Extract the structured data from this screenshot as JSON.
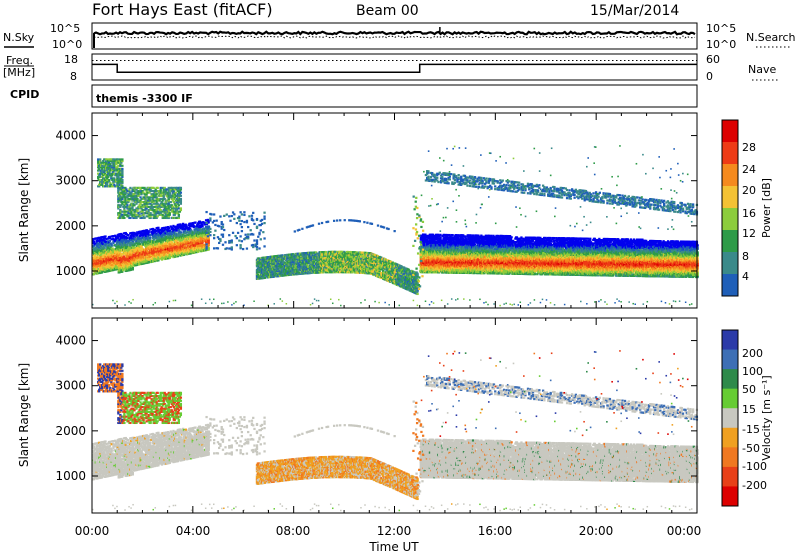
{
  "header": {
    "title": "Fort Hays East (fitACF)",
    "beam": "Beam 00",
    "date": "15/Mar/2014"
  },
  "summary_panels": {
    "nsky": {
      "left_label": "N.Sky",
      "right_label": "N.Search",
      "left_ticks": [
        "10^5",
        "10^0"
      ],
      "right_ticks": [
        "10^5",
        "10^0"
      ]
    },
    "freq": {
      "left_label_1": "Freq.",
      "left_label_2": "[MHz]",
      "left_ticks": [
        "18",
        "8"
      ],
      "right_ticks": [
        "60",
        "0"
      ],
      "right_label": "Nave"
    },
    "cpid": {
      "label": "CPID",
      "program": "themis -3300 IF"
    }
  },
  "axes": {
    "y_label": "Slant Range [km]",
    "x_label": "Time UT",
    "y_ticks": [
      "1000",
      "2000",
      "3000",
      "4000"
    ],
    "x_ticks": [
      "00:00",
      "04:00",
      "08:00",
      "12:00",
      "16:00",
      "20:00",
      "00:00"
    ]
  },
  "colorbars": {
    "power": {
      "label": "Power [dB]",
      "ticks": [
        "4",
        "8",
        "12",
        "16",
        "20",
        "24",
        "28"
      ],
      "colors": [
        "#0000ee",
        "#1f5fb8",
        "#3a8a8a",
        "#2e9b48",
        "#8ccc3c",
        "#f4c234",
        "#f58a1e",
        "#ee3b16",
        "#dd0000"
      ]
    },
    "velocity": {
      "label": "Velocity [m s⁻¹]",
      "ticks": [
        "200",
        "100",
        "50",
        "15",
        "-15",
        "-50",
        "-100",
        "-200"
      ],
      "colors": [
        "#2b3aa8",
        "#3d6fb5",
        "#2e8a4a",
        "#66cc33",
        "#c8c8c0",
        "#f0a020",
        "#f07820",
        "#e84018",
        "#dd0000"
      ]
    }
  },
  "chart_data": {
    "type": "heatmap",
    "x_range_hours": [
      0,
      24
    ],
    "y_range_km": [
      180,
      4500
    ],
    "power_range_db": [
      0,
      30
    ],
    "velocity_range_ms": [
      -250,
      250
    ],
    "nsky_level": "10^5 range, near-constant",
    "freq_mhz_schedule": [
      {
        "start": 0.0,
        "end": 1.0,
        "freq": 14
      },
      {
        "start": 1.0,
        "end": 13.0,
        "freq": 11
      },
      {
        "start": 13.0,
        "end": 24.0,
        "freq": 14
      }
    ],
    "nave_level": 45,
    "echo_regions": [
      {
        "name": "near-range band",
        "t": [
          0.0,
          4.5
        ],
        "range_km": [
          900,
          1700
        ],
        "power_db": 22,
        "velocity_ms": 0
      },
      {
        "name": "early high-range patch",
        "t": [
          0.0,
          3.5
        ],
        "range_km": [
          2200,
          3300
        ],
        "power_db": 10,
        "velocity_ms": 40
      },
      {
        "name": "evening arc",
        "t": [
          6.5,
          12.8
        ],
        "range_km": [
          700,
          1400
        ],
        "power_db": 8,
        "velocity_ms": -30
      },
      {
        "name": "post-13h main band",
        "t": [
          13.0,
          24.0
        ],
        "range_km": [
          1000,
          1800
        ],
        "power_db": 22,
        "velocity_ms": 0
      },
      {
        "name": "post-13h high-range",
        "t": [
          13.0,
          24.0
        ],
        "range_km": [
          2300,
          3200
        ],
        "power_db": 8,
        "velocity_ms": 30
      }
    ]
  }
}
